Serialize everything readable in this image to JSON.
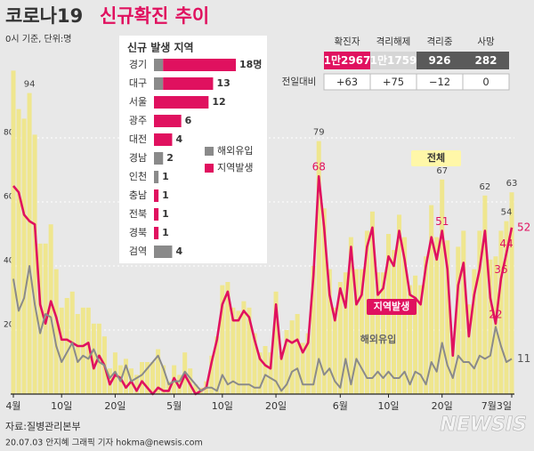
{
  "header": {
    "title_main": "코로나19",
    "title_highlight": "신규확진 추이",
    "subtitle": "0시 기준, 단위:명",
    "stats": {
      "headers": [
        "확진자",
        "격리해제",
        "격리중",
        "사망"
      ],
      "totals": [
        "1만2967",
        "1만1759",
        "926",
        "282"
      ],
      "change_label": "전일대비",
      "changes": [
        "+63",
        "+75",
        "−12",
        "0"
      ]
    }
  },
  "footer": {
    "source": "자료:질병관리본부",
    "credit": "20.07.03 안지혜 그래픽 기자 hokma@newsis.com",
    "logo": "NEWSIS"
  },
  "chart_data": [
    {
      "type": "bar",
      "categories": [
        "4월",
        null,
        null,
        null,
        null,
        null,
        null,
        null,
        null,
        "10일",
        null,
        null,
        null,
        null,
        null,
        null,
        null,
        null,
        null,
        "20일",
        null,
        null,
        null,
        null,
        null,
        null,
        null,
        null,
        null,
        null,
        "5월",
        null,
        null,
        null,
        null,
        null,
        null,
        null,
        null,
        "10일",
        null,
        null,
        null,
        null,
        null,
        null,
        null,
        null,
        null,
        "20일",
        null,
        null,
        null,
        null,
        null,
        null,
        null,
        null,
        null,
        null,
        null,
        "6월",
        null,
        null,
        null,
        null,
        null,
        null,
        null,
        null,
        "10일",
        null,
        null,
        null,
        null,
        null,
        null,
        null,
        null,
        null,
        "20일",
        null,
        null,
        null,
        null,
        null,
        null,
        null,
        null,
        null,
        null,
        null,
        null,
        "7월3일"
      ],
      "ylim": [
        0,
        100
      ],
      "yticks": [
        20,
        40,
        60,
        80
      ],
      "grid": true,
      "series": [
        {
          "name": "전체",
          "type": "bar",
          "color": "#efe68e",
          "label_color": "#444444",
          "label_indices": [
            3,
            57,
            80,
            88,
            92,
            93
          ],
          "values": [
            101,
            89,
            86,
            94,
            81,
            47,
            47,
            53,
            39,
            27,
            30,
            32,
            25,
            27,
            27,
            22,
            22,
            18,
            8,
            13,
            9,
            11,
            8,
            6,
            10,
            10,
            10,
            14,
            9,
            4,
            9,
            6,
            13,
            8,
            3,
            2,
            4,
            12,
            18,
            34,
            35,
            27,
            26,
            29,
            27,
            19,
            13,
            15,
            13,
            32,
            12,
            20,
            23,
            25,
            16,
            19,
            40,
            79,
            58,
            39,
            27,
            35,
            38,
            49,
            39,
            39,
            51,
            57,
            38,
            38,
            50,
            45,
            56,
            49,
            34,
            37,
            34,
            43,
            59,
            49,
            67,
            48,
            17,
            46,
            51,
            28,
            39,
            51,
            62,
            42,
            43,
            51,
            54,
            63
          ]
        },
        {
          "name": "지역발생",
          "type": "line",
          "color": "#e0115f",
          "label_color": "#e0115f",
          "label_indices": [
            57,
            80,
            90,
            91,
            92,
            93
          ],
          "values": [
            65,
            63,
            56,
            54,
            53,
            28,
            22,
            29,
            24,
            17,
            17,
            16,
            15,
            15,
            16,
            8,
            12,
            9,
            3,
            6,
            5,
            2,
            4,
            1,
            4,
            2,
            0,
            2,
            1,
            1,
            5,
            2,
            6,
            3,
            0,
            1,
            2,
            10,
            17,
            28,
            32,
            23,
            23,
            26,
            24,
            17,
            11,
            9,
            8,
            28,
            11,
            17,
            16,
            17,
            13,
            16,
            37,
            68,
            52,
            31,
            23,
            33,
            27,
            46,
            28,
            31,
            46,
            52,
            31,
            33,
            43,
            40,
            51,
            42,
            31,
            30,
            28,
            40,
            49,
            42,
            51,
            39,
            12,
            34,
            41,
            18,
            31,
            39,
            51,
            30,
            22,
            36,
            44,
            52
          ]
        },
        {
          "name": "해외유입",
          "type": "line",
          "color": "#8a8a8a",
          "label_color": "#555555",
          "label_indices": [
            93
          ],
          "values": [
            36,
            26,
            30,
            40,
            28,
            19,
            25,
            24,
            15,
            10,
            13,
            16,
            10,
            12,
            11,
            14,
            10,
            9,
            5,
            7,
            4,
            9,
            4,
            5,
            6,
            8,
            10,
            12,
            8,
            3,
            4,
            4,
            7,
            5,
            3,
            1,
            2,
            2,
            1,
            6,
            3,
            4,
            3,
            3,
            3,
            2,
            2,
            6,
            5,
            4,
            1,
            3,
            7,
            8,
            3,
            3,
            3,
            11,
            6,
            8,
            4,
            2,
            11,
            3,
            11,
            8,
            5,
            5,
            7,
            5,
            7,
            5,
            5,
            7,
            3,
            7,
            6,
            3,
            10,
            7,
            16,
            9,
            5,
            12,
            10,
            10,
            8,
            12,
            11,
            12,
            21,
            15,
            10,
            11
          ]
        }
      ]
    },
    {
      "type": "bar",
      "orientation": "horizontal",
      "stacked": true,
      "title": "신규 발생 지역",
      "categories": [
        "경기",
        "대구",
        "서울",
        "광주",
        "대전",
        "경남",
        "인천",
        "충남",
        "전북",
        "경북",
        "검역"
      ],
      "series": [
        {
          "name": "해외유입",
          "color": "#8a8a8a",
          "values": [
            2,
            2,
            0,
            0,
            0,
            2,
            1,
            0,
            0,
            0,
            4
          ]
        },
        {
          "name": "지역발생",
          "color": "#e0115f",
          "values": [
            16,
            11,
            12,
            6,
            4,
            0,
            0,
            1,
            1,
            1,
            0
          ]
        }
      ],
      "totals": {
        "values": [
          18,
          13,
          12,
          6,
          4,
          2,
          1,
          1,
          1,
          1,
          4
        ],
        "value_labels": [
          "18명",
          "13",
          "12",
          "6",
          "4",
          "2",
          "1",
          "1",
          "1",
          "1",
          "4"
        ]
      }
    }
  ]
}
